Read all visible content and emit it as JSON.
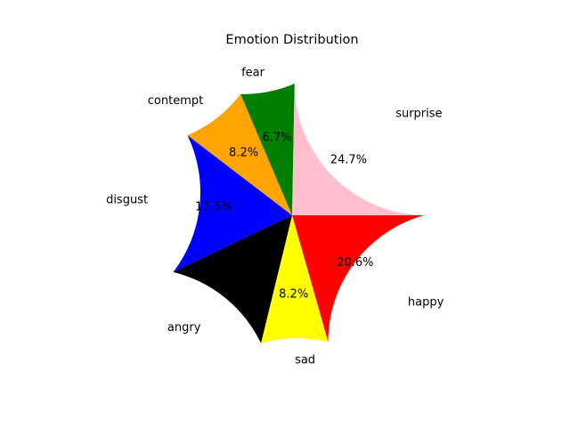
{
  "chart_data": {
    "type": "pie",
    "title": "Emotion Distribution",
    "start_angle_deg": 0,
    "direction": "counterclockwise",
    "slices": [
      {
        "label": "happy",
        "value": 20.6,
        "pct_text": "20.6%",
        "color": "#ff0000"
      },
      {
        "label": "sad",
        "value": 8.2,
        "pct_text": "8.2%",
        "color": "#ffff00"
      },
      {
        "label": "angry",
        "value": 14.1,
        "pct_text": "",
        "color": "#000000"
      },
      {
        "label": "disgust",
        "value": 17.5,
        "pct_text": "17.5%",
        "color": "#0000ff"
      },
      {
        "label": "contempt",
        "value": 8.2,
        "pct_text": "8.2%",
        "color": "#ffa500"
      },
      {
        "label": "fear",
        "value": 6.7,
        "pct_text": "6.7%",
        "color": "#008000"
      },
      {
        "label": "surprise",
        "value": 24.7,
        "pct_text": "24.7%",
        "color": "#ffc0cb"
      }
    ]
  }
}
